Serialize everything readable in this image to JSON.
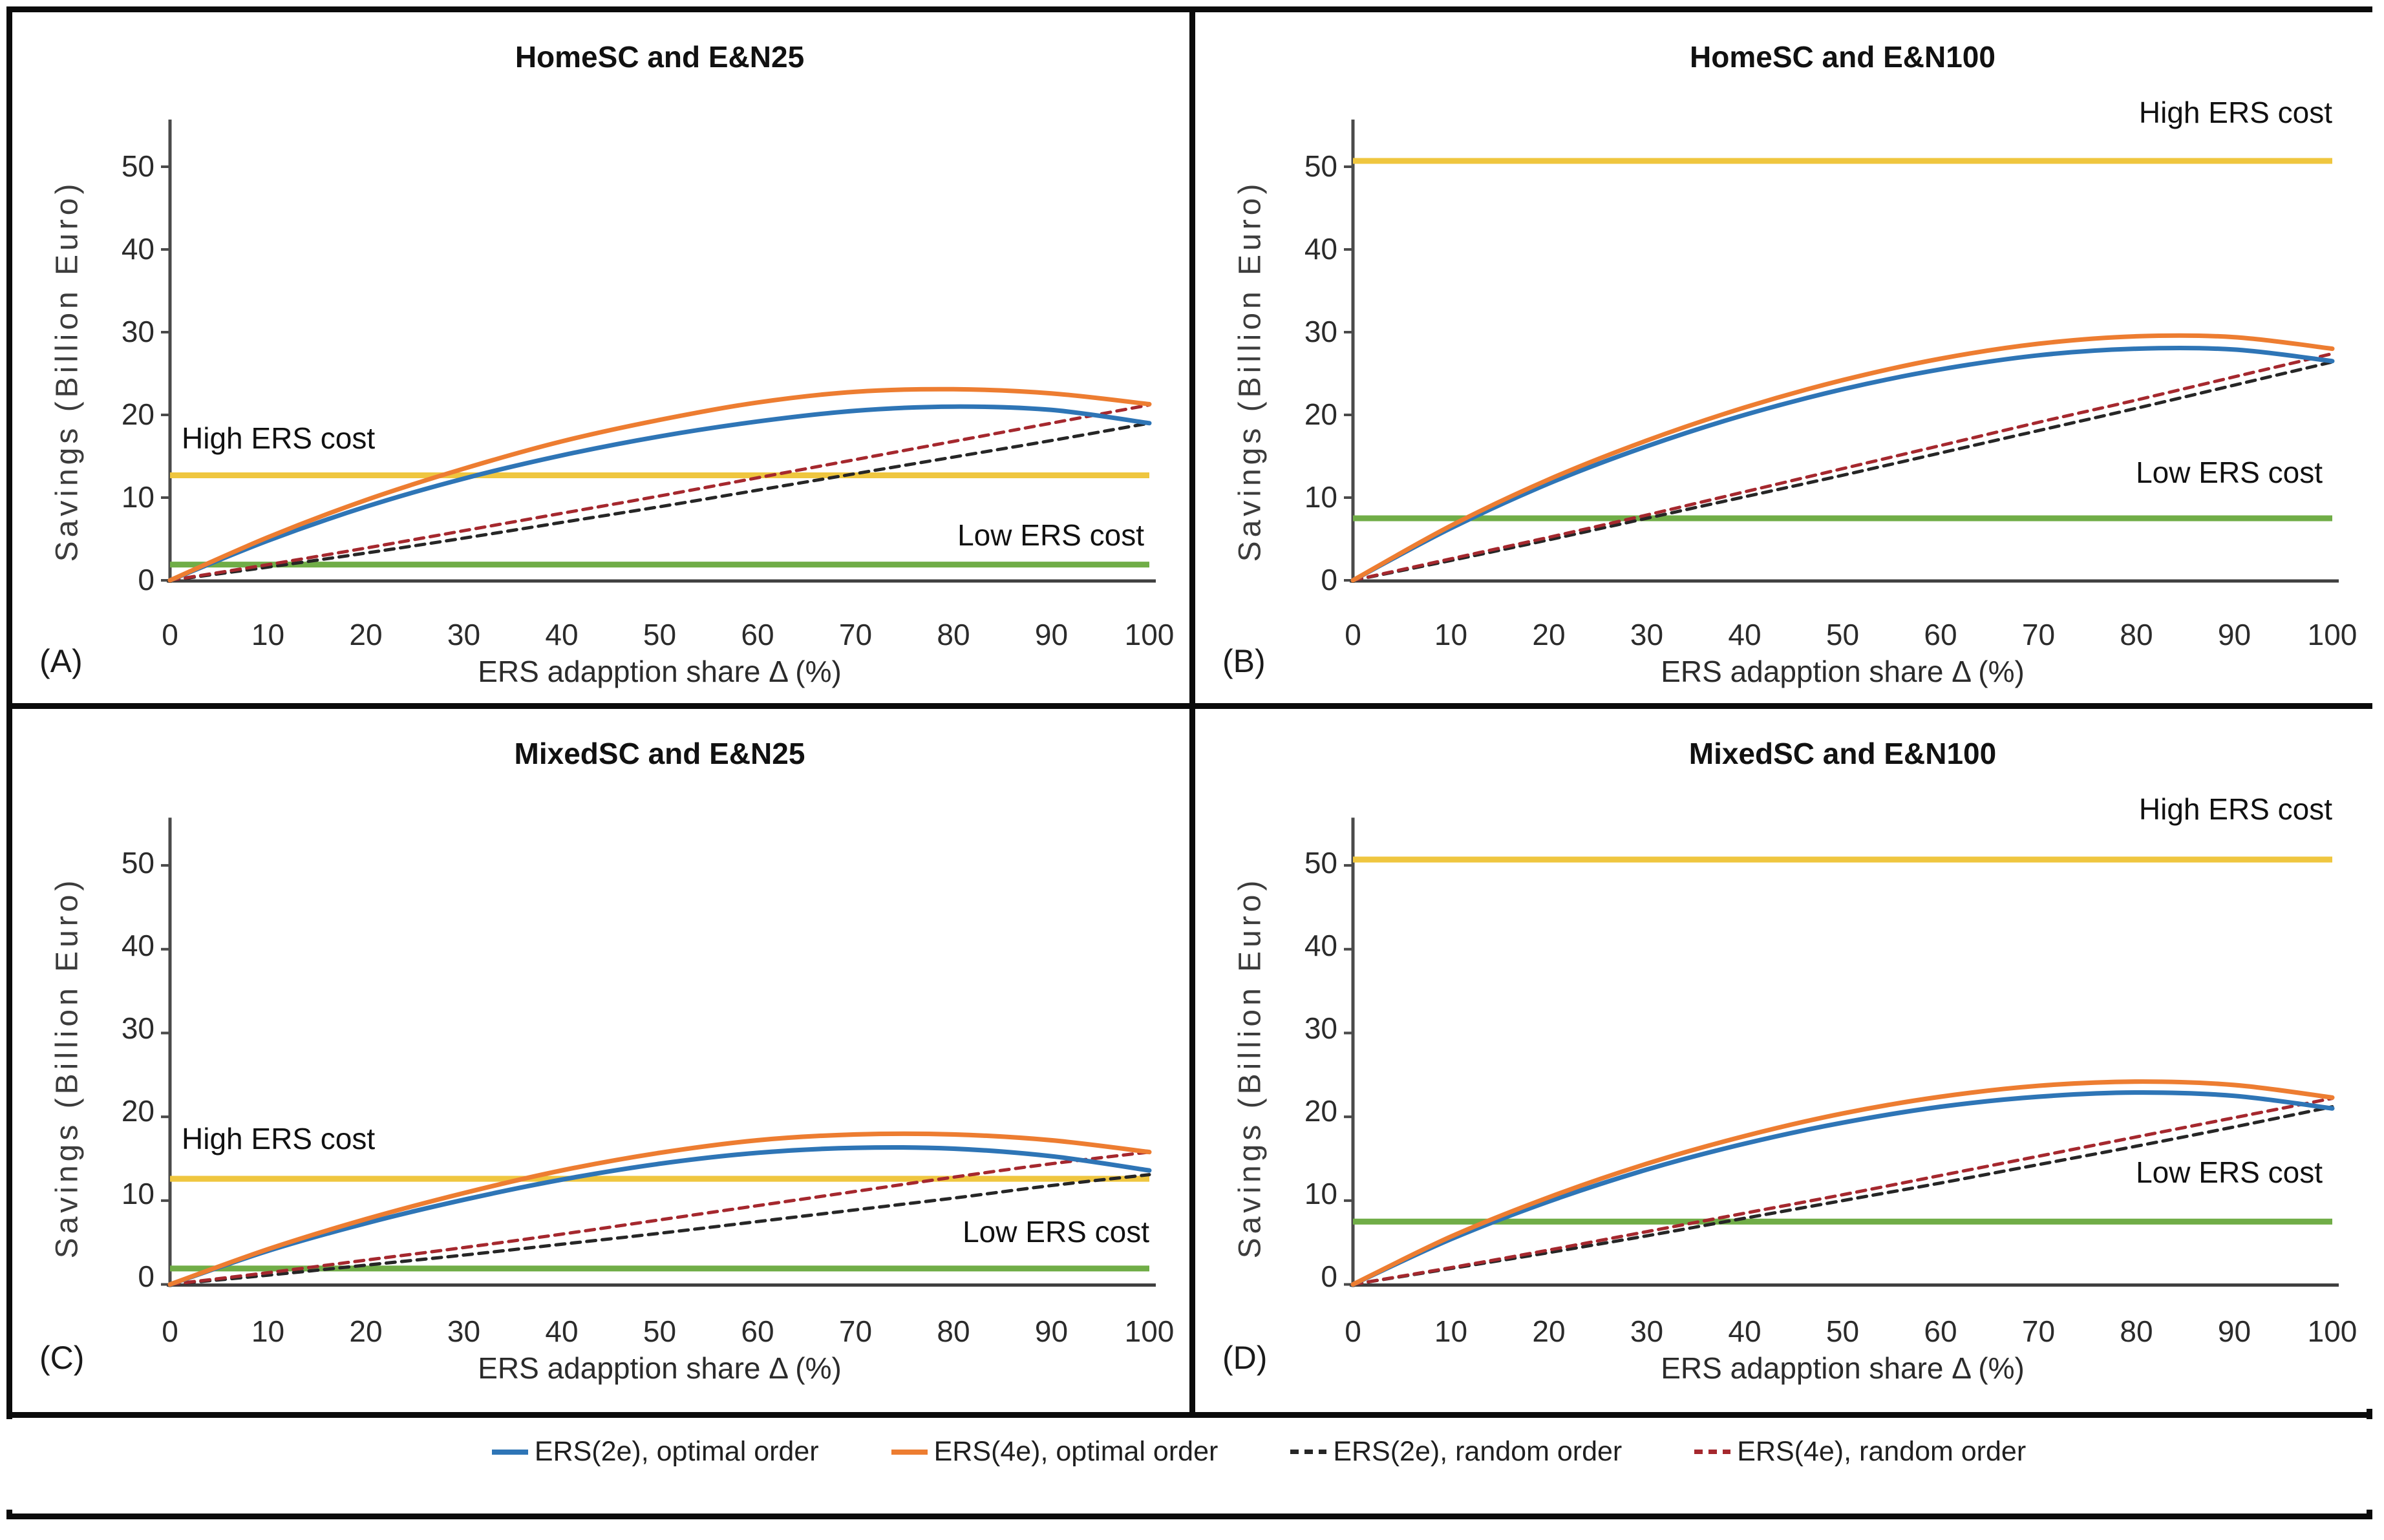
{
  "axes": {
    "y_title": "Savings (Billion Euro)",
    "x_title": "ERS adapption share Δ (%)",
    "y_ticks": [
      0,
      10,
      20,
      30,
      40,
      50
    ],
    "x_ticks": [
      0,
      10,
      20,
      30,
      40,
      50,
      60,
      70,
      80,
      90,
      100
    ],
    "ylim": [
      0,
      55
    ],
    "xlim": [
      0,
      100
    ]
  },
  "colors": {
    "blue": "#2E75B6",
    "orange": "#ED7D31",
    "yellow": "#EFC63F",
    "green": "#70AD47",
    "black_dash": "#262626",
    "red_dash": "#A5282E",
    "axis": "#4a4a4a",
    "text": "#1f1f1f"
  },
  "legend": {
    "items": [
      {
        "label": "ERS(2e), optimal order",
        "style": "solid",
        "color": "#2E75B6"
      },
      {
        "label": "ERS(4e), optimal order",
        "style": "solid",
        "color": "#ED7D31"
      },
      {
        "label": "ERS(2e), random order",
        "style": "dashed",
        "color": "#262626"
      },
      {
        "label": "ERS(4e), random order",
        "style": "dashed",
        "color": "#A5282E"
      }
    ]
  },
  "chart_data": [
    {
      "type": "line",
      "panel_label": "(A)",
      "title": "HomeSC and E&N25",
      "xlabel": "ERS adapption share Δ (%)",
      "ylabel": "Savings (Billion Euro)",
      "xlim": [
        0,
        100
      ],
      "ylim": [
        0,
        55
      ],
      "grid": false,
      "x": [
        0,
        10,
        20,
        30,
        40,
        50,
        60,
        70,
        80,
        90,
        100
      ],
      "series": [
        {
          "name": "ERS(2e), optimal order",
          "style": "solid",
          "color": "#2E75B6",
          "values": [
            0,
            4.8,
            8.9,
            12.3,
            15.1,
            17.4,
            19.2,
            20.5,
            21.0,
            20.6,
            19.0
          ]
        },
        {
          "name": "ERS(4e), optimal order",
          "style": "solid",
          "color": "#ED7D31",
          "values": [
            0,
            5.2,
            9.7,
            13.5,
            16.8,
            19.4,
            21.5,
            22.8,
            23.1,
            22.6,
            21.3
          ]
        },
        {
          "name": "ERS(2e), random order",
          "style": "dashed",
          "color": "#262626",
          "values": [
            0,
            1.6,
            3.3,
            5.1,
            7.0,
            8.9,
            10.9,
            12.9,
            14.9,
            16.9,
            19.0
          ]
        },
        {
          "name": "ERS(4e), random order",
          "style": "dashed",
          "color": "#A5282E",
          "values": [
            0,
            1.9,
            3.9,
            6.0,
            8.1,
            10.2,
            12.4,
            14.6,
            16.8,
            19.0,
            21.2
          ]
        }
      ],
      "hlines": [
        {
          "label": "High ERS cost",
          "value": 12.7,
          "color": "#EFC63F"
        },
        {
          "label": "Low ERS cost",
          "value": 1.9,
          "color": "#70AD47"
        }
      ]
    },
    {
      "type": "line",
      "panel_label": "(B)",
      "title": "HomeSC and E&N100",
      "xlabel": "ERS adapption share Δ (%)",
      "ylabel": "Savings (Billion Euro)",
      "xlim": [
        0,
        100
      ],
      "ylim": [
        0,
        55
      ],
      "grid": false,
      "x": [
        0,
        10,
        20,
        30,
        40,
        50,
        60,
        70,
        80,
        90,
        100
      ],
      "series": [
        {
          "name": "ERS(2e), optimal order",
          "style": "solid",
          "color": "#2E75B6",
          "values": [
            0,
            6.3,
            11.7,
            16.2,
            20.0,
            23.1,
            25.5,
            27.2,
            28.0,
            27.9,
            26.5
          ]
        },
        {
          "name": "ERS(4e), optimal order",
          "style": "solid",
          "color": "#ED7D31",
          "values": [
            0,
            6.6,
            12.2,
            16.9,
            20.9,
            24.2,
            26.8,
            28.6,
            29.5,
            29.4,
            28.0
          ]
        },
        {
          "name": "ERS(2e), random order",
          "style": "dashed",
          "color": "#262626",
          "values": [
            0,
            2.4,
            4.9,
            7.5,
            10.1,
            12.7,
            15.4,
            18.1,
            20.8,
            23.6,
            26.4
          ]
        },
        {
          "name": "ERS(4e), random order",
          "style": "dashed",
          "color": "#A5282E",
          "values": [
            0,
            2.6,
            5.2,
            7.9,
            10.7,
            13.5,
            16.3,
            19.1,
            21.8,
            24.6,
            27.4
          ]
        }
      ],
      "hlines": [
        {
          "label": "High ERS cost",
          "value": 50.7,
          "color": "#EFC63F"
        },
        {
          "label": "Low ERS cost",
          "value": 7.5,
          "color": "#70AD47"
        }
      ]
    },
    {
      "type": "line",
      "panel_label": "(C)",
      "title": "MixedSC and E&N25",
      "xlabel": "ERS adapption share Δ (%)",
      "ylabel": "Savings (Billion Euro)",
      "xlim": [
        0,
        100
      ],
      "ylim": [
        0,
        55
      ],
      "grid": false,
      "x": [
        0,
        10,
        20,
        30,
        40,
        50,
        60,
        70,
        80,
        90,
        100
      ],
      "series": [
        {
          "name": "ERS(2e), optimal order",
          "style": "solid",
          "color": "#2E75B6",
          "values": [
            0,
            4.0,
            7.3,
            10.1,
            12.5,
            14.4,
            15.7,
            16.3,
            16.2,
            15.3,
            13.6
          ]
        },
        {
          "name": "ERS(4e), optimal order",
          "style": "solid",
          "color": "#ED7D31",
          "values": [
            0,
            4.2,
            7.8,
            10.9,
            13.6,
            15.7,
            17.2,
            17.9,
            17.9,
            17.2,
            15.8
          ]
        },
        {
          "name": "ERS(2e), random order",
          "style": "dashed",
          "color": "#262626",
          "values": [
            0,
            1.1,
            2.3,
            3.5,
            4.8,
            6.1,
            7.5,
            8.9,
            10.3,
            11.8,
            13.1
          ]
        },
        {
          "name": "ERS(4e), random order",
          "style": "dashed",
          "color": "#A5282E",
          "values": [
            0,
            1.4,
            2.9,
            4.4,
            6.0,
            7.7,
            9.4,
            11.1,
            12.8,
            14.4,
            15.8
          ]
        }
      ],
      "hlines": [
        {
          "label": "High ERS cost",
          "value": 12.6,
          "color": "#EFC63F"
        },
        {
          "label": "Low ERS cost",
          "value": 1.9,
          "color": "#70AD47"
        }
      ]
    },
    {
      "type": "line",
      "panel_label": "(D)",
      "title": "MixedSC and E&N100",
      "xlabel": "ERS adapption share Δ (%)",
      "ylabel": "Savings (Billion Euro)",
      "xlim": [
        0,
        100
      ],
      "ylim": [
        0,
        55
      ],
      "grid": false,
      "x": [
        0,
        10,
        20,
        30,
        40,
        50,
        60,
        70,
        80,
        90,
        100
      ],
      "series": [
        {
          "name": "ERS(2e), optimal order",
          "style": "solid",
          "color": "#2E75B6",
          "values": [
            0,
            5.4,
            9.9,
            13.7,
            16.8,
            19.3,
            21.2,
            22.4,
            22.9,
            22.5,
            21.0
          ]
        },
        {
          "name": "ERS(4e), optimal order",
          "style": "solid",
          "color": "#ED7D31",
          "values": [
            0,
            5.7,
            10.4,
            14.4,
            17.7,
            20.4,
            22.4,
            23.7,
            24.2,
            23.8,
            22.3
          ]
        },
        {
          "name": "ERS(2e), random order",
          "style": "dashed",
          "color": "#262626",
          "values": [
            0,
            1.9,
            3.8,
            5.8,
            7.9,
            10.0,
            12.1,
            14.3,
            16.5,
            18.8,
            21.2
          ]
        },
        {
          "name": "ERS(4e), random order",
          "style": "dashed",
          "color": "#A5282E",
          "values": [
            0,
            2.0,
            4.1,
            6.3,
            8.5,
            10.7,
            13.0,
            15.3,
            17.6,
            19.9,
            22.2
          ]
        }
      ],
      "hlines": [
        {
          "label": "High ERS cost",
          "value": 50.7,
          "color": "#EFC63F"
        },
        {
          "label": "Low ERS cost",
          "value": 7.5,
          "color": "#70AD47"
        }
      ]
    }
  ]
}
